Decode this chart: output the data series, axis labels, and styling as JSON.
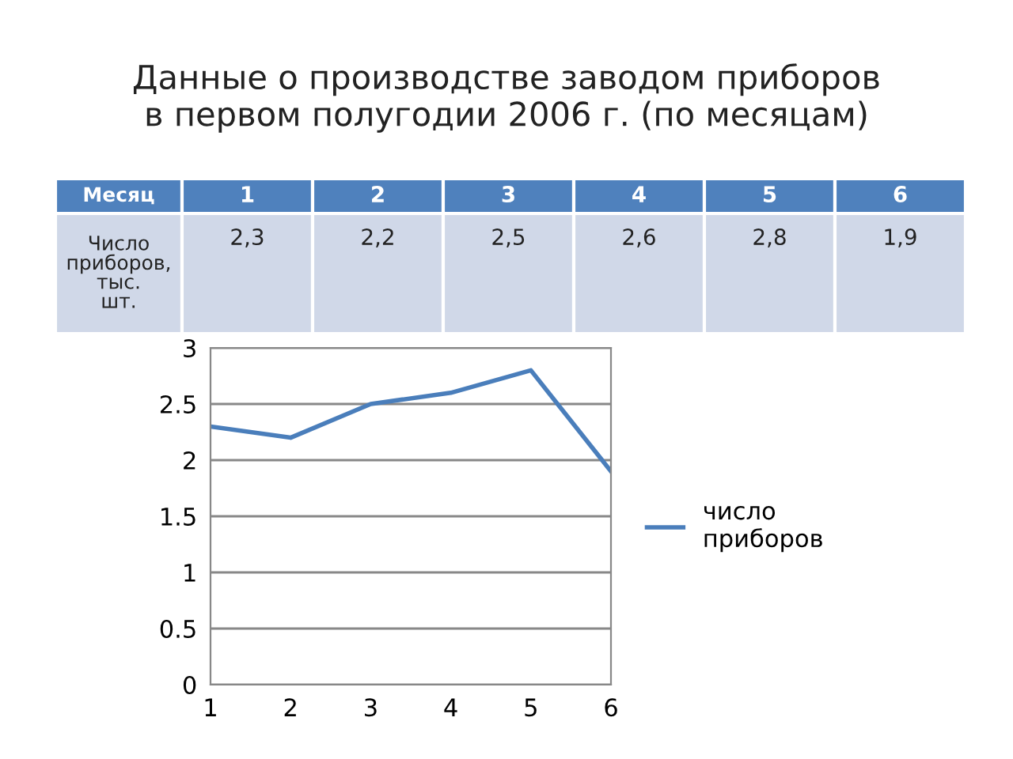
{
  "chart_data": {
    "type": "line",
    "title": "Данные о производстве заводом приборов\nв первом полугодии 2006 г. (по месяцам)",
    "annotations": [
      "Месяц",
      "1",
      "2",
      "3",
      "4",
      "5",
      "6",
      "Число приборов, тыс. шт.",
      "2,3",
      "2,2",
      "2,5",
      "2,6",
      "2,8",
      "1,9"
    ],
    "x": [
      1,
      2,
      3,
      4,
      5,
      6
    ],
    "series": [
      {
        "name": "число приборов",
        "color": "#4a7ebb",
        "values": [
          2.3,
          2.2,
          2.5,
          2.6,
          2.8,
          1.9
        ]
      }
    ],
    "xlim": [
      1,
      6
    ],
    "xticks": [
      1,
      2,
      3,
      4,
      5,
      6
    ],
    "ylim": [
      0,
      3
    ],
    "yticks": [
      0,
      0.5,
      1,
      1.5,
      2,
      2.5,
      3
    ],
    "grid": "y",
    "legend": "right",
    "marker": "none",
    "line_style": "solid"
  }
}
